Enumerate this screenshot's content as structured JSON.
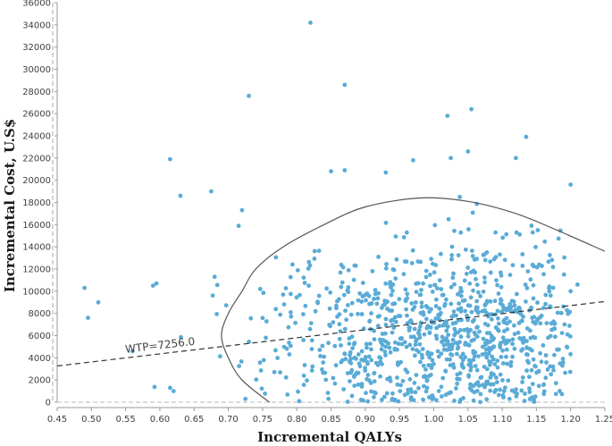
{
  "chart_data": {
    "type": "scatter",
    "title": "",
    "xlabel": "Incremental QALYs",
    "ylabel": "Incremental Cost, U.S$",
    "xlim": [
      0.45,
      1.25
    ],
    "ylim": [
      0,
      36000
    ],
    "x_ticks": [
      "0.45",
      "0.50",
      "0.55",
      "0.60",
      "0.65",
      "0.70",
      "0.75",
      "0.80",
      "0.85",
      "0.90",
      "0.95",
      "1.00",
      "1.05",
      "1.10",
      "1.15",
      "1.20",
      "1.25"
    ],
    "y_ticks": [
      "0",
      "2000",
      "4000",
      "6000",
      "8000",
      "10000",
      "12000",
      "14000",
      "16000",
      "18000",
      "20000",
      "22000",
      "24000",
      "26000",
      "28000",
      "30000",
      "32000",
      "34000",
      "36000"
    ],
    "grid": false,
    "marker_color": "#5aabd6",
    "threshold_line": {
      "label": "WTP=7256.0",
      "slope": 7256.0,
      "style": "dashed",
      "color": "#333333"
    },
    "ellipse": {
      "shape": "confidence ellipse",
      "color": "#555555",
      "points": [
        [
          0.76,
          0
        ],
        [
          0.72,
          2000
        ],
        [
          0.7,
          4000
        ],
        [
          0.69,
          6000
        ],
        [
          0.7,
          8000
        ],
        [
          0.72,
          10000
        ],
        [
          0.74,
          12000
        ],
        [
          0.78,
          14000
        ],
        [
          0.84,
          16000
        ],
        [
          0.9,
          17600
        ],
        [
          0.98,
          18400
        ],
        [
          1.05,
          18100
        ],
        [
          1.12,
          17000
        ],
        [
          1.18,
          15500
        ],
        [
          1.25,
          13600
        ]
      ]
    },
    "outliers": [
      {
        "x": 0.49,
        "y": 10300
      },
      {
        "x": 0.495,
        "y": 7600
      },
      {
        "x": 0.51,
        "y": 9000
      },
      {
        "x": 0.59,
        "y": 10500
      },
      {
        "x": 0.595,
        "y": 10700
      },
      {
        "x": 0.615,
        "y": 21900
      },
      {
        "x": 0.63,
        "y": 18600
      },
      {
        "x": 0.675,
        "y": 19000
      },
      {
        "x": 0.72,
        "y": 17300
      },
      {
        "x": 0.73,
        "y": 27600
      },
      {
        "x": 0.82,
        "y": 34200
      },
      {
        "x": 0.87,
        "y": 28600
      },
      {
        "x": 0.85,
        "y": 20800
      },
      {
        "x": 0.87,
        "y": 20900
      },
      {
        "x": 0.93,
        "y": 20700
      },
      {
        "x": 0.97,
        "y": 21800
      },
      {
        "x": 1.02,
        "y": 25800
      },
      {
        "x": 1.025,
        "y": 22000
      },
      {
        "x": 1.055,
        "y": 26400
      },
      {
        "x": 1.05,
        "y": 22600
      },
      {
        "x": 1.135,
        "y": 23900
      },
      {
        "x": 1.12,
        "y": 22000
      },
      {
        "x": 1.2,
        "y": 19600
      },
      {
        "x": 1.2,
        "y": 10000
      },
      {
        "x": 1.21,
        "y": 10600
      },
      {
        "x": 0.62,
        "y": 1000
      },
      {
        "x": 0.615,
        "y": 1300
      },
      {
        "x": 0.56,
        "y": 4600
      },
      {
        "x": 0.725,
        "y": 300
      },
      {
        "x": 0.68,
        "y": 11300
      }
    ],
    "cloud_summary": {
      "n_points": 1000,
      "x_center": 1.0,
      "x_spread": 0.13,
      "x_range": [
        0.55,
        1.2
      ],
      "y_center": 6000,
      "y_spread": 4000,
      "y_range": [
        0,
        19000
      ]
    }
  }
}
